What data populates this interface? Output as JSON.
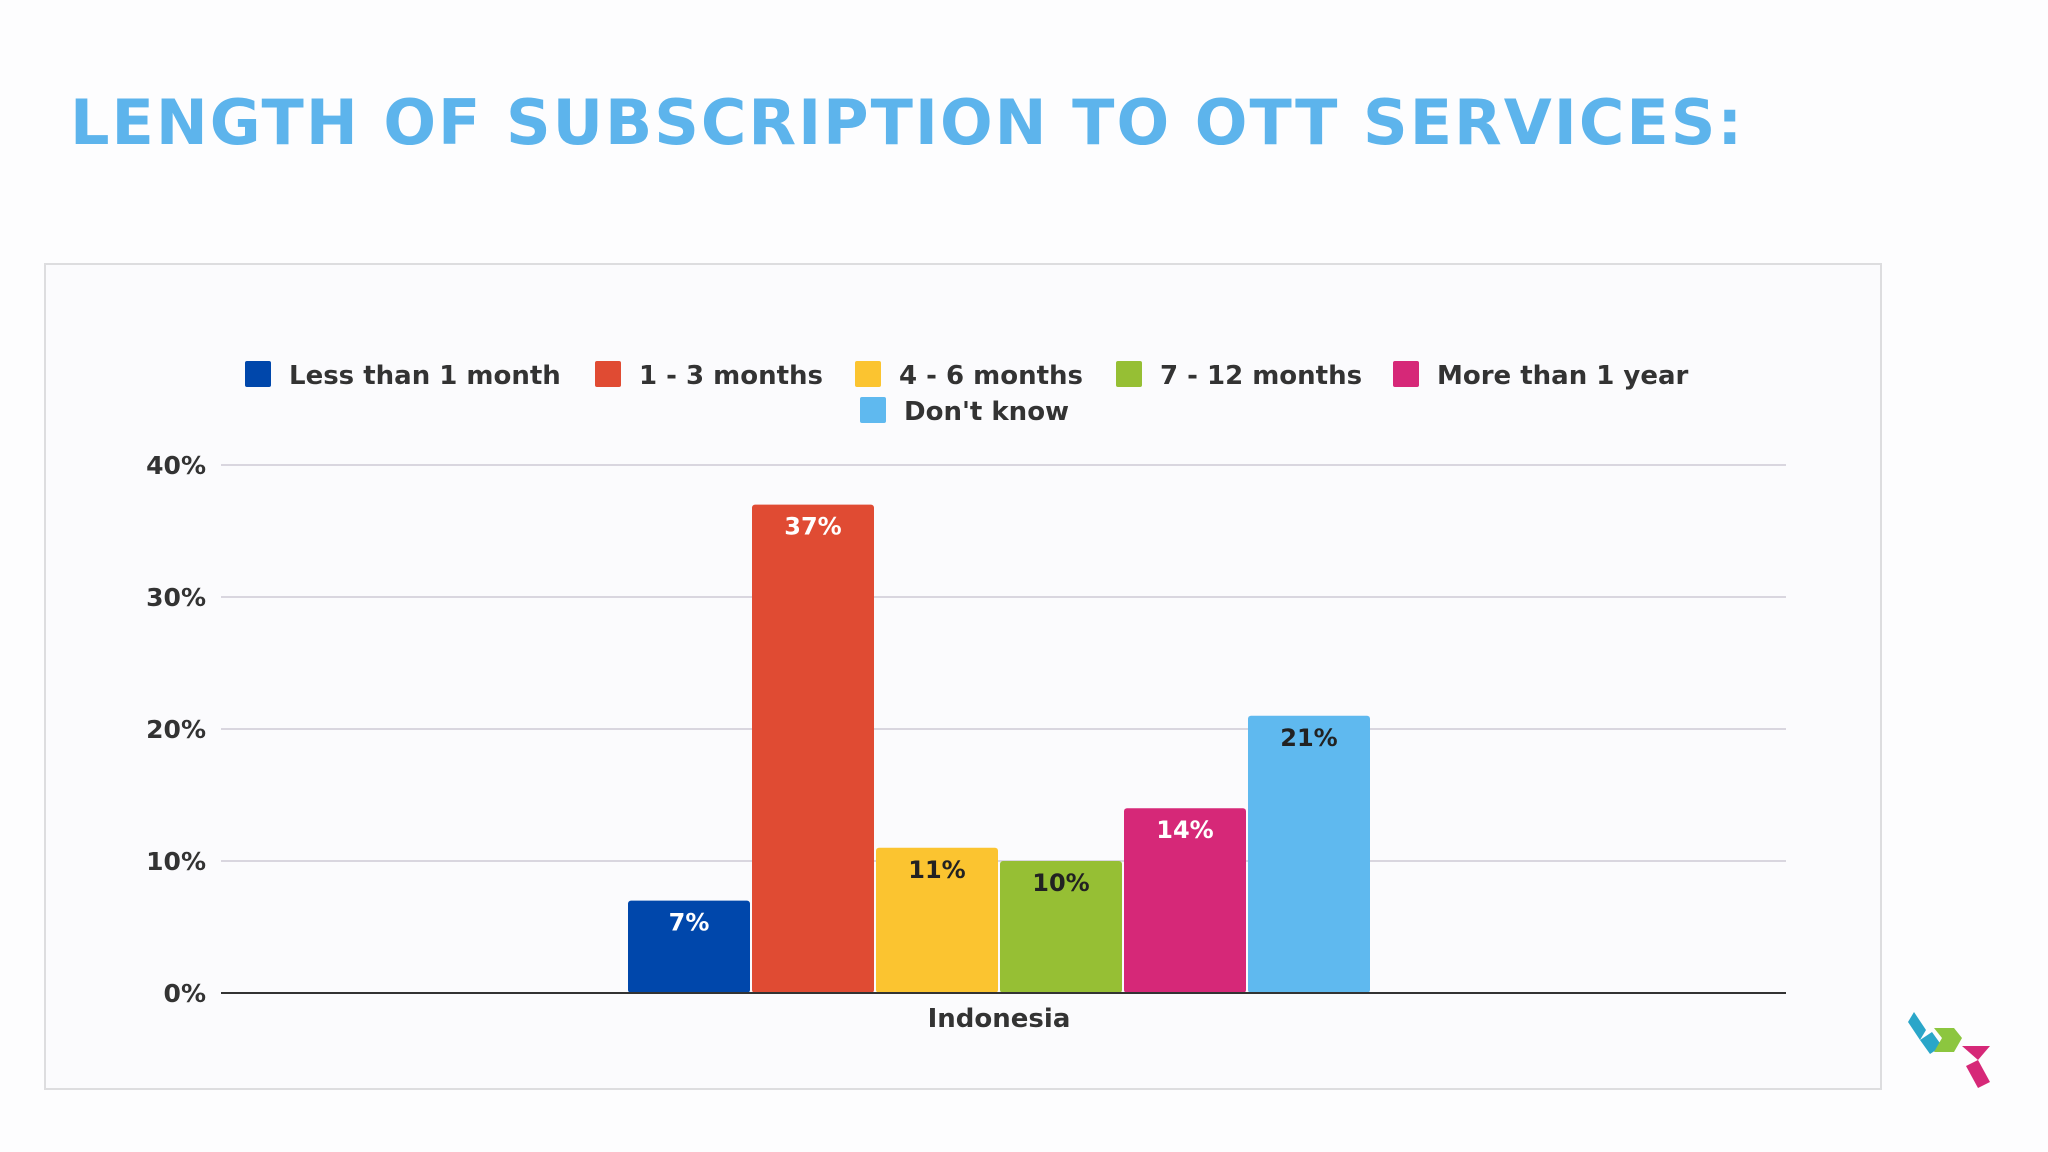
{
  "slide": {
    "title": "LENGTH OF SUBSCRIPTION TO OTT SERVICES:"
  },
  "chart_data": {
    "type": "bar",
    "title": "",
    "xlabel": "",
    "ylabel": "",
    "categories": [
      "Indonesia"
    ],
    "series": [
      {
        "name": "Less than 1 month",
        "values": [
          7
        ],
        "label": "7%",
        "color": "#0047ab",
        "label_color": "#ffffff"
      },
      {
        "name": "1 - 3 months",
        "values": [
          37
        ],
        "label": "37%",
        "color": "#e04b33",
        "label_color": "#ffffff"
      },
      {
        "name": "4 - 6 months",
        "values": [
          11
        ],
        "label": "11%",
        "color": "#fbc430",
        "label_color": "#222222"
      },
      {
        "name": "7 - 12 months",
        "values": [
          10
        ],
        "label": "10%",
        "color": "#96bf34",
        "label_color": "#222222"
      },
      {
        "name": "More than 1 year",
        "values": [
          14
        ],
        "label": "14%",
        "color": "#d62878",
        "label_color": "#ffffff"
      },
      {
        "name": "Don't know",
        "values": [
          21
        ],
        "label": "21%",
        "color": "#5fb9ef",
        "label_color": "#222222"
      }
    ],
    "ylim": [
      0,
      40
    ],
    "yticks": [
      0,
      10,
      20,
      30,
      40
    ],
    "ytick_labels": [
      "0%",
      "10%",
      "20%",
      "30%",
      "40%"
    ],
    "grid": true,
    "legend_position": "top"
  },
  "logo": {
    "colors": [
      "#2aa6c9",
      "#8cc63f",
      "#d62878"
    ]
  }
}
